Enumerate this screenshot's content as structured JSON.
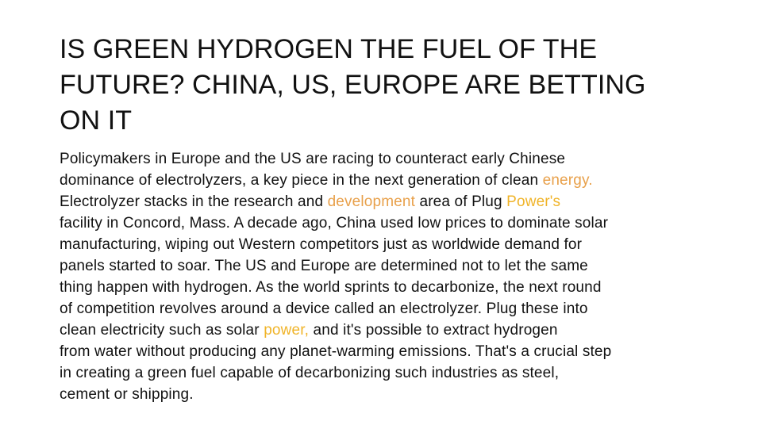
{
  "article": {
    "headline_lines": [
      "IS GREEN HYDROGEN THE FUEL OF THE",
      "FUTURE? CHINA, US, EUROPE ARE BETTING",
      "ON IT"
    ],
    "body": {
      "p1": "Policymakers in Europe and the US are racing to counteract early Chinese",
      "p2": "dominance of electrolyzers, a key piece in the next generation of clean ",
      "link_energy": "energy.",
      "p3": "Electrolyzer stacks in the research and ",
      "link_development": "development",
      "p4": " area of Plug ",
      "link_powers": "Power's",
      "p5": "facility in Concord, Mass. A decade ago, China used low prices to dominate solar",
      "p6": "manufacturing, wiping out Western competitors just as worldwide demand for",
      "p7": "panels started to soar. The US and Europe are determined not to let the same",
      "p8": "thing happen with hydrogen. As the world sprints to decarbonize, the next round",
      "p9": "of competition revolves around a device called an electrolyzer. Plug these into",
      "p10": "clean electricity such as solar ",
      "link_power": "power,",
      "p11": " and it's possible to extract hydrogen",
      "p12": "from water without producing any planet-warming emissions. That's a crucial step",
      "p13": "in creating a green fuel capable of decarbonizing such industries as steel,",
      "p14": "cement or shipping."
    },
    "colors": {
      "text": "#111111",
      "link_orange": "#e8a04a",
      "link_yellow": "#f0b429"
    }
  }
}
